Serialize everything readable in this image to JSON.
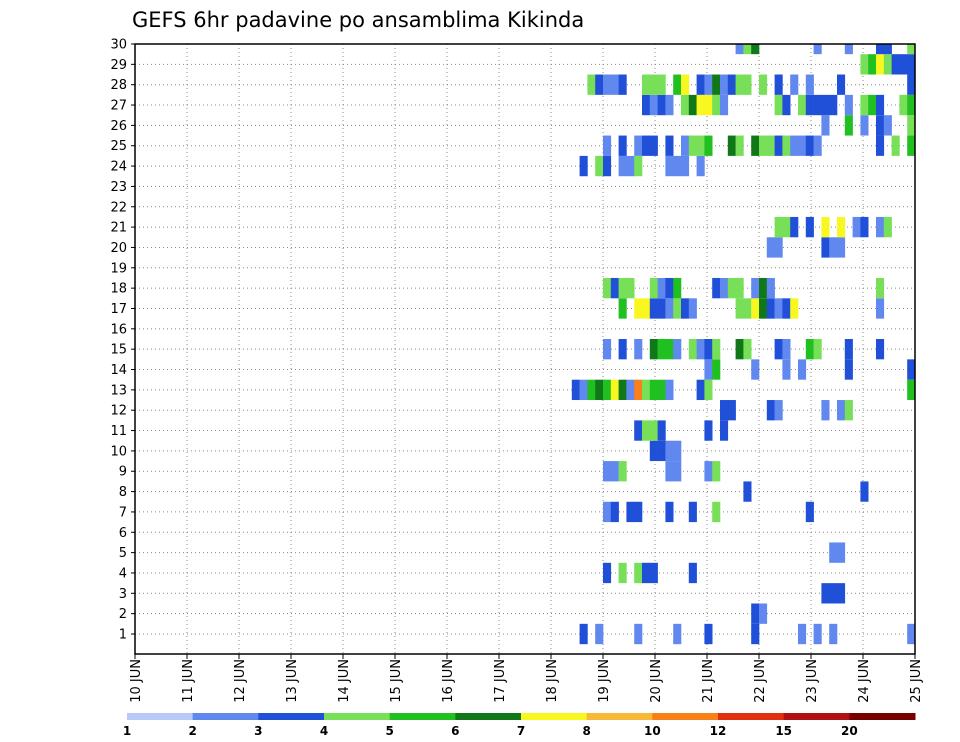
{
  "chart_data": {
    "type": "heatmap",
    "title": "GEFS 6hr padavine po ansamblima Kikinda",
    "xlabel": "",
    "ylabel": "",
    "x_tick_labels": [
      "10 JUN",
      "11 JUN",
      "12 JUN",
      "13 JUN",
      "14 JUN",
      "15 JUN",
      "16 JUN",
      "17 JUN",
      "18 JUN",
      "19 JUN",
      "20 JUN",
      "21 JUN",
      "22 JUN",
      "23 JUN",
      "24 JUN",
      "25 JUN"
    ],
    "y_tick_labels": [
      "1",
      "2",
      "3",
      "4",
      "5",
      "6",
      "7",
      "8",
      "9",
      "10",
      "11",
      "12",
      "13",
      "14",
      "15",
      "16",
      "17",
      "18",
      "19",
      "20",
      "21",
      "22",
      "23",
      "24",
      "25",
      "26",
      "27",
      "28",
      "29",
      "30"
    ],
    "x_unit": "6-hour step from 10 JUN 00Z",
    "y_unit": "ensemble member",
    "grid": true,
    "colorbar": {
      "position": "bottom",
      "tick_labels": [
        "1",
        "2",
        "3",
        "4",
        "5",
        "6",
        "7",
        "8",
        "10",
        "12",
        "15",
        "20"
      ],
      "colors": [
        "#b8c8f8",
        "#6088ee",
        "#2050d8",
        "#78e058",
        "#20c020",
        "#107818",
        "#f8f820",
        "#f8b838",
        "#f88018",
        "#e03010",
        "#b01010",
        "#780000"
      ]
    },
    "cells": [
      [
        57,
        0,
        2
      ],
      [
        59,
        0,
        1
      ],
      [
        64,
        0,
        1
      ],
      [
        69,
        0,
        1
      ],
      [
        73,
        0,
        2
      ],
      [
        79,
        0,
        2
      ],
      [
        85,
        0,
        1
      ],
      [
        87,
        0,
        1
      ],
      [
        89,
        0,
        1
      ],
      [
        99,
        0,
        1
      ],
      [
        79,
        1,
        2
      ],
      [
        80,
        1,
        1
      ],
      [
        88,
        2,
        2
      ],
      [
        89,
        2,
        2
      ],
      [
        90,
        2,
        2
      ],
      [
        60,
        3,
        2
      ],
      [
        62,
        3,
        3
      ],
      [
        64,
        3,
        3
      ],
      [
        65,
        3,
        2
      ],
      [
        66,
        3,
        2
      ],
      [
        71,
        3,
        2
      ],
      [
        89,
        4,
        1
      ],
      [
        90,
        4,
        1
      ],
      [
        60,
        6,
        1
      ],
      [
        61,
        6,
        2
      ],
      [
        63,
        6,
        2
      ],
      [
        64,
        6,
        2
      ],
      [
        68,
        6,
        2
      ],
      [
        71,
        6,
        2
      ],
      [
        74,
        6,
        3
      ],
      [
        86,
        6,
        2
      ],
      [
        78,
        7,
        2
      ],
      [
        93,
        7,
        2
      ],
      [
        60,
        8,
        1
      ],
      [
        61,
        8,
        1
      ],
      [
        62,
        8,
        3
      ],
      [
        68,
        8,
        1
      ],
      [
        69,
        8,
        1
      ],
      [
        73,
        8,
        1
      ],
      [
        74,
        8,
        3
      ],
      [
        66,
        9,
        2
      ],
      [
        67,
        9,
        2
      ],
      [
        68,
        9,
        1
      ],
      [
        69,
        9,
        1
      ],
      [
        64,
        10,
        2
      ],
      [
        65,
        10,
        3
      ],
      [
        66,
        10,
        3
      ],
      [
        67,
        10,
        2
      ],
      [
        73,
        10,
        2
      ],
      [
        75,
        10,
        2
      ],
      [
        75,
        11,
        2
      ],
      [
        76,
        11,
        2
      ],
      [
        81,
        11,
        2
      ],
      [
        82,
        11,
        1
      ],
      [
        88,
        11,
        1
      ],
      [
        90,
        11,
        1
      ],
      [
        91,
        11,
        3
      ],
      [
        56,
        12,
        2
      ],
      [
        57,
        12,
        1
      ],
      [
        58,
        12,
        4
      ],
      [
        59,
        12,
        5
      ],
      [
        60,
        12,
        4
      ],
      [
        61,
        12,
        6
      ],
      [
        62,
        12,
        5
      ],
      [
        63,
        12,
        1
      ],
      [
        64,
        12,
        8
      ],
      [
        65,
        12,
        3
      ],
      [
        66,
        12,
        4
      ],
      [
        67,
        12,
        4
      ],
      [
        68,
        12,
        1
      ],
      [
        72,
        12,
        2
      ],
      [
        73,
        12,
        3
      ],
      [
        99,
        12,
        4
      ],
      [
        73,
        13,
        1
      ],
      [
        74,
        13,
        4
      ],
      [
        79,
        13,
        1
      ],
      [
        83,
        13,
        1
      ],
      [
        85,
        13,
        1
      ],
      [
        91,
        13,
        2
      ],
      [
        99,
        13,
        2
      ],
      [
        60,
        14,
        1
      ],
      [
        62,
        14,
        2
      ],
      [
        64,
        14,
        1
      ],
      [
        66,
        14,
        5
      ],
      [
        67,
        14,
        4
      ],
      [
        68,
        14,
        4
      ],
      [
        69,
        14,
        1
      ],
      [
        71,
        14,
        3
      ],
      [
        72,
        14,
        1
      ],
      [
        73,
        14,
        2
      ],
      [
        74,
        14,
        3
      ],
      [
        77,
        14,
        5
      ],
      [
        78,
        14,
        3
      ],
      [
        82,
        14,
        2
      ],
      [
        83,
        14,
        1
      ],
      [
        86,
        14,
        4
      ],
      [
        87,
        14,
        3
      ],
      [
        91,
        14,
        2
      ],
      [
        95,
        14,
        2
      ],
      [
        62,
        16,
        4
      ],
      [
        64,
        16,
        6
      ],
      [
        65,
        16,
        6
      ],
      [
        66,
        16,
        2
      ],
      [
        67,
        16,
        2
      ],
      [
        68,
        16,
        1
      ],
      [
        69,
        16,
        3
      ],
      [
        70,
        16,
        2
      ],
      [
        71,
        16,
        1
      ],
      [
        77,
        16,
        3
      ],
      [
        78,
        16,
        3
      ],
      [
        79,
        16,
        6
      ],
      [
        80,
        16,
        5
      ],
      [
        81,
        16,
        2
      ],
      [
        82,
        16,
        1
      ],
      [
        83,
        16,
        2
      ],
      [
        84,
        16,
        6
      ],
      [
        95,
        16,
        1
      ],
      [
        60,
        17,
        3
      ],
      [
        61,
        17,
        2
      ],
      [
        62,
        17,
        3
      ],
      [
        63,
        17,
        3
      ],
      [
        66,
        17,
        3
      ],
      [
        67,
        17,
        1
      ],
      [
        68,
        17,
        2
      ],
      [
        69,
        17,
        4
      ],
      [
        74,
        17,
        2
      ],
      [
        75,
        17,
        1
      ],
      [
        76,
        17,
        3
      ],
      [
        77,
        17,
        3
      ],
      [
        79,
        17,
        1
      ],
      [
        80,
        17,
        5
      ],
      [
        81,
        17,
        1
      ],
      [
        95,
        17,
        3
      ],
      [
        81,
        19,
        1
      ],
      [
        82,
        19,
        1
      ],
      [
        88,
        19,
        2
      ],
      [
        89,
        19,
        1
      ],
      [
        90,
        19,
        1
      ],
      [
        82,
        20,
        3
      ],
      [
        83,
        20,
        3
      ],
      [
        84,
        20,
        2
      ],
      [
        86,
        20,
        2
      ],
      [
        88,
        20,
        6
      ],
      [
        90,
        20,
        6
      ],
      [
        92,
        20,
        1
      ],
      [
        93,
        20,
        2
      ],
      [
        95,
        20,
        1
      ],
      [
        96,
        20,
        3
      ],
      [
        57,
        23,
        2
      ],
      [
        59,
        23,
        3
      ],
      [
        60,
        23,
        2
      ],
      [
        62,
        23,
        1
      ],
      [
        63,
        23,
        1
      ],
      [
        64,
        23,
        3
      ],
      [
        68,
        23,
        1
      ],
      [
        69,
        23,
        1
      ],
      [
        70,
        23,
        1
      ],
      [
        72,
        23,
        1
      ],
      [
        60,
        24,
        1
      ],
      [
        62,
        24,
        2
      ],
      [
        64,
        24,
        1
      ],
      [
        65,
        24,
        2
      ],
      [
        66,
        24,
        2
      ],
      [
        68,
        24,
        2
      ],
      [
        70,
        24,
        1
      ],
      [
        71,
        24,
        3
      ],
      [
        72,
        24,
        3
      ],
      [
        73,
        24,
        4
      ],
      [
        76,
        24,
        5
      ],
      [
        77,
        24,
        3
      ],
      [
        79,
        24,
        5
      ],
      [
        80,
        24,
        3
      ],
      [
        81,
        24,
        3
      ],
      [
        82,
        24,
        2
      ],
      [
        83,
        24,
        3
      ],
      [
        84,
        24,
        1
      ],
      [
        85,
        24,
        1
      ],
      [
        86,
        24,
        2
      ],
      [
        87,
        24,
        1
      ],
      [
        95,
        24,
        2
      ],
      [
        97,
        24,
        3
      ],
      [
        99,
        24,
        4
      ],
      [
        88,
        25,
        1
      ],
      [
        91,
        25,
        4
      ],
      [
        93,
        25,
        1
      ],
      [
        95,
        25,
        2
      ],
      [
        96,
        25,
        1
      ],
      [
        99,
        25,
        3
      ],
      [
        65,
        26,
        2
      ],
      [
        66,
        26,
        1
      ],
      [
        67,
        26,
        2
      ],
      [
        68,
        26,
        1
      ],
      [
        70,
        26,
        3
      ],
      [
        71,
        26,
        5
      ],
      [
        72,
        26,
        6
      ],
      [
        73,
        26,
        6
      ],
      [
        74,
        26,
        3
      ],
      [
        75,
        26,
        1
      ],
      [
        82,
        26,
        3
      ],
      [
        83,
        26,
        2
      ],
      [
        85,
        26,
        3
      ],
      [
        86,
        26,
        2
      ],
      [
        87,
        26,
        2
      ],
      [
        88,
        26,
        2
      ],
      [
        89,
        26,
        2
      ],
      [
        91,
        26,
        1
      ],
      [
        93,
        26,
        3
      ],
      [
        94,
        26,
        4
      ],
      [
        95,
        26,
        2
      ],
      [
        98,
        26,
        3
      ],
      [
        99,
        26,
        4
      ],
      [
        58,
        27,
        3
      ],
      [
        59,
        27,
        2
      ],
      [
        60,
        27,
        1
      ],
      [
        61,
        27,
        1
      ],
      [
        62,
        27,
        2
      ],
      [
        65,
        27,
        3
      ],
      [
        66,
        27,
        3
      ],
      [
        67,
        27,
        3
      ],
      [
        69,
        27,
        4
      ],
      [
        70,
        27,
        6
      ],
      [
        72,
        27,
        2
      ],
      [
        73,
        27,
        1
      ],
      [
        74,
        27,
        5
      ],
      [
        75,
        27,
        1
      ],
      [
        76,
        27,
        2
      ],
      [
        77,
        27,
        3
      ],
      [
        78,
        27,
        3
      ],
      [
        80,
        27,
        3
      ],
      [
        82,
        27,
        2
      ],
      [
        84,
        27,
        1
      ],
      [
        86,
        27,
        1
      ],
      [
        90,
        27,
        2
      ],
      [
        99,
        27,
        2
      ],
      [
        93,
        28,
        3
      ],
      [
        94,
        28,
        4
      ],
      [
        95,
        28,
        6
      ],
      [
        96,
        28,
        3
      ],
      [
        97,
        28,
        2
      ],
      [
        98,
        28,
        2
      ],
      [
        99,
        28,
        2
      ],
      [
        77,
        29,
        1
      ],
      [
        78,
        29,
        3
      ],
      [
        79,
        29,
        5
      ],
      [
        87,
        29,
        1
      ],
      [
        91,
        29,
        1
      ],
      [
        95,
        29,
        2
      ],
      [
        96,
        29,
        2
      ],
      [
        99,
        29,
        3
      ]
    ]
  }
}
